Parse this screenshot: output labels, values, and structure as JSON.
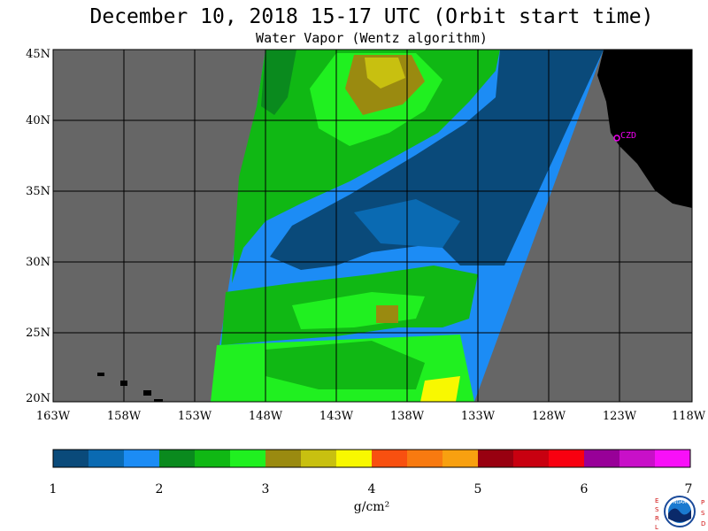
{
  "title": "December 10, 2018  15-17 UTC  (Orbit start time)",
  "subtitle": "Water Vapor (Wentz algorithm)",
  "station_label": "CZD",
  "colorbar": {
    "unit": "g/cm²",
    "ticks": [
      "1",
      "2",
      "3",
      "4",
      "5",
      "6",
      "7"
    ],
    "colors": [
      "#0a4a7a",
      "#0a6ab2",
      "#1c8cf5",
      "#0a8a1e",
      "#10b814",
      "#20f020",
      "#9a8a10",
      "#c8c010",
      "#f8f800",
      "#f85010",
      "#f87a10",
      "#f8a010",
      "#980010",
      "#c80010",
      "#f80010",
      "#980098",
      "#c810c8",
      "#f810f8"
    ]
  },
  "lat_labels": [
    "45N",
    "40N",
    "35N",
    "30N",
    "25N",
    "20N"
  ],
  "lon_labels": [
    "163W",
    "158W",
    "153W",
    "148W",
    "143W",
    "138W",
    "133W",
    "128W",
    "123W",
    "118W"
  ],
  "logo": {
    "left_letters": [
      "E",
      "S",
      "R",
      "L"
    ],
    "right_letters": [
      "P",
      "S",
      "D"
    ],
    "center": "NOAA"
  },
  "colors": {
    "no_data": "#666666",
    "land": "#000000",
    "station": "#f000f0"
  }
}
